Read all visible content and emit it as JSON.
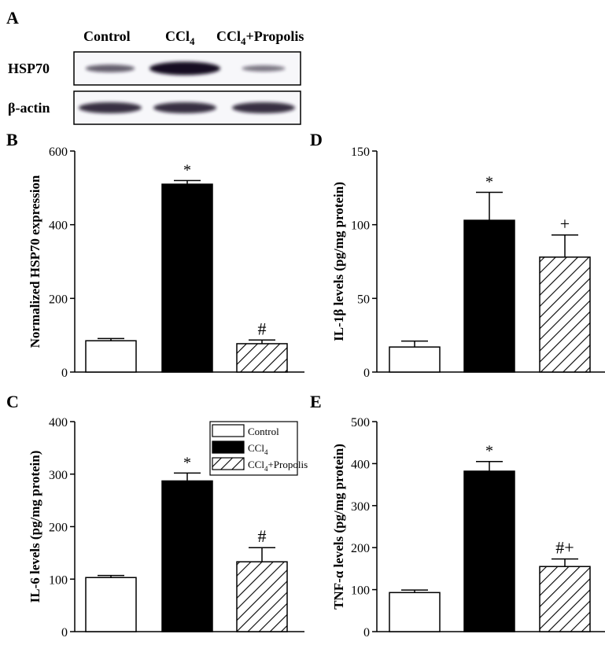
{
  "panel_labels": {
    "a": "A",
    "b": "B",
    "c": "C",
    "d": "D",
    "e": "E"
  },
  "western_blot": {
    "lanes": [
      {
        "label": "Control"
      },
      {
        "label": "CCl",
        "sub": "4"
      },
      {
        "label": "CCl",
        "sub": "4",
        "suffix": "+Propolis"
      }
    ],
    "rows": [
      {
        "label": "HSP70",
        "band_intensity": [
          0.45,
          1.0,
          0.3
        ]
      },
      {
        "label": "β-actin",
        "band_intensity": [
          0.9,
          0.9,
          0.9
        ]
      }
    ]
  },
  "legend": {
    "items": [
      {
        "label": "Control",
        "style": "open"
      },
      {
        "label": "CCl",
        "sub": "4",
        "style": "filled"
      },
      {
        "label": "CCl",
        "sub": "4",
        "suffix": "+Propolis",
        "style": "hatched"
      }
    ]
  },
  "colors": {
    "filled": "#000000",
    "open": "#ffffff",
    "stroke": "#000000"
  },
  "chart_data": [
    {
      "panel": "B",
      "type": "bar",
      "categories": [
        "Control",
        "CCl4",
        "CCl4+Propolis"
      ],
      "values": [
        85,
        510,
        77
      ],
      "errors": [
        6,
        10,
        10
      ],
      "annotations": [
        "",
        "*",
        "#"
      ],
      "ylabel": "Normalized HSP70 expression",
      "ylim": [
        0,
        600
      ],
      "yticks": [
        0,
        200,
        400,
        600
      ]
    },
    {
      "panel": "C",
      "type": "bar",
      "categories": [
        "Control",
        "CCl4",
        "CCl4+Propolis"
      ],
      "values": [
        103,
        287,
        133
      ],
      "errors": [
        4,
        15,
        27
      ],
      "annotations": [
        "",
        "*",
        "#"
      ],
      "ylabel": "IL-6 levels (pg/mg protein)",
      "ylim": [
        0,
        400
      ],
      "yticks": [
        0,
        100,
        200,
        300,
        400
      ]
    },
    {
      "panel": "D",
      "type": "bar",
      "categories": [
        "Control",
        "CCl4",
        "CCl4+Propolis"
      ],
      "values": [
        17,
        103,
        78
      ],
      "errors": [
        4,
        19,
        15
      ],
      "annotations": [
        "",
        "*",
        "+"
      ],
      "ylabel": "IL-1β levels (pg/mg protein)",
      "ylim": [
        0,
        150
      ],
      "yticks": [
        0,
        50,
        100,
        150
      ]
    },
    {
      "panel": "E",
      "type": "bar",
      "categories": [
        "Control",
        "CCl4",
        "CCl4+Propolis"
      ],
      "values": [
        93,
        382,
        155
      ],
      "errors": [
        6,
        23,
        18
      ],
      "annotations": [
        "",
        "*",
        "#+"
      ],
      "ylabel": "TNF-α levels (pg/mg protein)",
      "ylim": [
        0,
        500
      ],
      "yticks": [
        0,
        100,
        200,
        300,
        400,
        500
      ]
    }
  ]
}
